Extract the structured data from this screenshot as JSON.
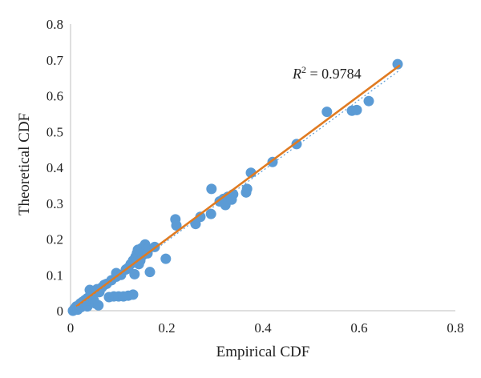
{
  "chart_data": {
    "type": "scatter",
    "title": "",
    "xlabel": "Empirical CDF",
    "ylabel": "Theoretical CDF",
    "xlim": [
      0,
      0.8
    ],
    "ylim": [
      0,
      0.8
    ],
    "x_ticks": [
      "0",
      "0.2",
      "0.4",
      "0.6",
      "0.8"
    ],
    "y_ticks": [
      "0",
      "0.1",
      "0.2",
      "0.3",
      "0.4",
      "0.5",
      "0.6",
      "0.7",
      "0.8"
    ],
    "grid": false,
    "legend": "none",
    "annotation": {
      "prefix": "R",
      "superscript": "2",
      "suffix": " = 0.9784"
    },
    "fit_lines": [
      {
        "kind": "solid",
        "color": "#e07b22",
        "x": [
          0.012,
          0.685
        ],
        "y": [
          0.012,
          0.685
        ]
      },
      {
        "kind": "dotted",
        "color": "#5b9bd5",
        "x": [
          0.0,
          0.685
        ],
        "y": [
          -0.003,
          0.672
        ]
      }
    ],
    "series": [
      {
        "color": "#5b9bd5",
        "points": [
          [
            0.005,
            0.0
          ],
          [
            0.008,
            0.005
          ],
          [
            0.01,
            0.008
          ],
          [
            0.012,
            0.012
          ],
          [
            0.015,
            0.003
          ],
          [
            0.018,
            0.015
          ],
          [
            0.02,
            0.02
          ],
          [
            0.022,
            0.01
          ],
          [
            0.025,
            0.025
          ],
          [
            0.028,
            0.018
          ],
          [
            0.03,
            0.03
          ],
          [
            0.032,
            0.022
          ],
          [
            0.035,
            0.035
          ],
          [
            0.035,
            0.012
          ],
          [
            0.038,
            0.028
          ],
          [
            0.04,
            0.04
          ],
          [
            0.042,
            0.05
          ],
          [
            0.045,
            0.045
          ],
          [
            0.048,
            0.03
          ],
          [
            0.05,
            0.055
          ],
          [
            0.052,
            0.02
          ],
          [
            0.055,
            0.06
          ],
          [
            0.058,
            0.015
          ],
          [
            0.04,
            0.058
          ],
          [
            0.06,
            0.052
          ],
          [
            0.065,
            0.065
          ],
          [
            0.07,
            0.072
          ],
          [
            0.075,
            0.075
          ],
          [
            0.08,
            0.038
          ],
          [
            0.085,
            0.085
          ],
          [
            0.09,
            0.04
          ],
          [
            0.095,
            0.095
          ],
          [
            0.095,
            0.105
          ],
          [
            0.1,
            0.04
          ],
          [
            0.105,
            0.1
          ],
          [
            0.11,
            0.04
          ],
          [
            0.115,
            0.115
          ],
          [
            0.12,
            0.12
          ],
          [
            0.12,
            0.042
          ],
          [
            0.125,
            0.13
          ],
          [
            0.13,
            0.045
          ],
          [
            0.13,
            0.14
          ],
          [
            0.133,
            0.102
          ],
          [
            0.135,
            0.15
          ],
          [
            0.138,
            0.16
          ],
          [
            0.14,
            0.17
          ],
          [
            0.142,
            0.13
          ],
          [
            0.145,
            0.14
          ],
          [
            0.148,
            0.175
          ],
          [
            0.15,
            0.155
          ],
          [
            0.152,
            0.165
          ],
          [
            0.155,
            0.185
          ],
          [
            0.158,
            0.17
          ],
          [
            0.16,
            0.16
          ],
          [
            0.165,
            0.108
          ],
          [
            0.175,
            0.178
          ],
          [
            0.198,
            0.145
          ],
          [
            0.218,
            0.255
          ],
          [
            0.22,
            0.238
          ],
          [
            0.26,
            0.242
          ],
          [
            0.27,
            0.262
          ],
          [
            0.292,
            0.27
          ],
          [
            0.293,
            0.34
          ],
          [
            0.31,
            0.305
          ],
          [
            0.318,
            0.312
          ],
          [
            0.322,
            0.295
          ],
          [
            0.327,
            0.318
          ],
          [
            0.335,
            0.31
          ],
          [
            0.338,
            0.325
          ],
          [
            0.365,
            0.33
          ],
          [
            0.367,
            0.34
          ],
          [
            0.375,
            0.385
          ],
          [
            0.42,
            0.415
          ],
          [
            0.47,
            0.465
          ],
          [
            0.533,
            0.555
          ],
          [
            0.585,
            0.558
          ],
          [
            0.595,
            0.56
          ],
          [
            0.62,
            0.585
          ],
          [
            0.68,
            0.688
          ]
        ]
      }
    ]
  }
}
